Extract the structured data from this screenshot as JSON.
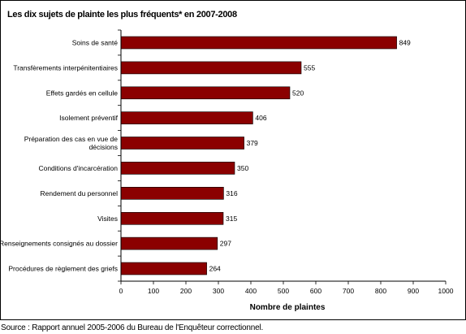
{
  "title": "Les dix sujets de plainte les plus fréquents* en 2007-2008",
  "source": "Source : Rapport annuel 2005-2006 du Bureau de l'Enquêteur correctionnel.",
  "colors": {
    "bar": "#8b0000",
    "axis": "#000000"
  },
  "chart_data": {
    "type": "bar",
    "orientation": "horizontal",
    "title": "Les dix sujets de plainte les plus fréquents* en 2007-2008",
    "xlabel": "Nombre de plaintes",
    "ylabel": "",
    "xlim": [
      0,
      1000
    ],
    "xticks": [
      0,
      100,
      200,
      300,
      400,
      500,
      600,
      700,
      800,
      900,
      1000
    ],
    "grid": false,
    "categories": [
      [
        "Soins de santé"
      ],
      [
        "Transfèrements interpénitentiaires"
      ],
      [
        "Effets gardés en cellule"
      ],
      [
        "Isolement préventif"
      ],
      [
        "Préparation des cas en vue de",
        "décisions"
      ],
      [
        "Conditions d'incarcération"
      ],
      [
        "Rendement du personnel"
      ],
      [
        "Visites"
      ],
      [
        "Renseignements consignés au dossier"
      ],
      [
        "Procédures de règlement des griefs"
      ]
    ],
    "values": [
      849,
      555,
      520,
      406,
      379,
      350,
      316,
      315,
      297,
      264
    ]
  }
}
